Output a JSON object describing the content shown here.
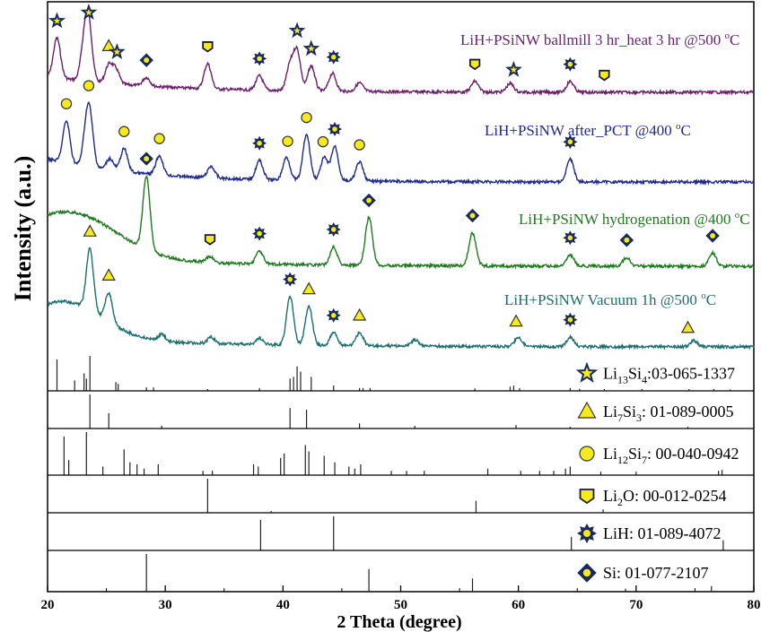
{
  "chart_data": {
    "type": "line",
    "xlabel": "2 Theta (degree)",
    "ylabel": "Intensity (a.u.)",
    "xlim": [
      20,
      80
    ],
    "xticks": [
      "20",
      "30",
      "40",
      "50",
      "60",
      "70",
      "80"
    ],
    "series": [
      {
        "name": "LiH+PSiNW ballmill 3 hr_heat 3 hr @500 oC",
        "label_main": "LiH+PSiNW ballmill 3 hr_heat 3 hr @500 ",
        "label_sup": "o",
        "label_tail": "C",
        "color": "#6b1f6b",
        "baseline": 1.0,
        "peaks": [
          [
            20.8,
            0.55
          ],
          [
            23.1,
            0.45
          ],
          [
            23.5,
            0.75
          ],
          [
            25.2,
            0.25
          ],
          [
            25.8,
            0.2
          ],
          [
            28.4,
            0.12
          ],
          [
            33.6,
            0.35
          ],
          [
            38.0,
            0.2
          ],
          [
            40.6,
            0.35
          ],
          [
            41.2,
            0.55
          ],
          [
            42.4,
            0.35
          ],
          [
            44.2,
            0.25
          ],
          [
            46.5,
            0.12
          ],
          [
            56.3,
            0.15
          ],
          [
            59.3,
            0.12
          ],
          [
            64.4,
            0.15
          ]
        ],
        "markers": [
          [
            20.8,
            "Li13Si4"
          ],
          [
            23.5,
            "Li13Si4"
          ],
          [
            25.2,
            "Li7Si3"
          ],
          [
            25.9,
            "Li13Si4"
          ],
          [
            28.4,
            "Si"
          ],
          [
            33.6,
            "Li2O"
          ],
          [
            38.0,
            "LiH"
          ],
          [
            41.2,
            "Li13Si4"
          ],
          [
            42.4,
            "Li13Si4"
          ],
          [
            44.3,
            "LiH"
          ],
          [
            56.3,
            "Li2O"
          ],
          [
            59.6,
            "Li13Si4"
          ],
          [
            64.4,
            "LiH"
          ],
          [
            67.3,
            "Li2O"
          ]
        ]
      },
      {
        "name": "LiH+PSiNW after_PCT @400 oC",
        "label_main": "LiH+PSiNW after_PCT @400 ",
        "label_sup": "o",
        "label_tail": "C",
        "color": "#1f2a8a",
        "baseline": 1.0,
        "peaks": [
          [
            21.6,
            0.55
          ],
          [
            23.3,
            0.4
          ],
          [
            23.6,
            0.55
          ],
          [
            25.3,
            0.15
          ],
          [
            26.5,
            0.3
          ],
          [
            29.5,
            0.25
          ],
          [
            33.9,
            0.15
          ],
          [
            38.0,
            0.25
          ],
          [
            40.3,
            0.3
          ],
          [
            42.0,
            0.6
          ],
          [
            43.5,
            0.3
          ],
          [
            44.4,
            0.45
          ],
          [
            46.5,
            0.25
          ],
          [
            64.4,
            0.3
          ]
        ],
        "markers": [
          [
            21.6,
            "Li12Si7"
          ],
          [
            23.5,
            "Li12Si7"
          ],
          [
            26.5,
            "Li12Si7"
          ],
          [
            29.5,
            "Li12Si7"
          ],
          [
            38.0,
            "LiH"
          ],
          [
            40.4,
            "Li12Si7"
          ],
          [
            42.0,
            "Li12Si7"
          ],
          [
            43.4,
            "Li12Si7"
          ],
          [
            44.4,
            "LiH"
          ],
          [
            46.5,
            "Li12Si7"
          ],
          [
            64.4,
            "LiH"
          ]
        ]
      },
      {
        "name": "LiH+PSiNW hydrogenation @400 oC",
        "label_main": "LiH+PSiNW hydrogenation @400 ",
        "label_sup": "o",
        "label_tail": "C",
        "color": "#1e7a1e",
        "baseline": 1.0,
        "peaks": [
          [
            28.4,
            1.0
          ],
          [
            33.8,
            0.08
          ],
          [
            38.0,
            0.18
          ],
          [
            44.3,
            0.25
          ],
          [
            47.3,
            0.65
          ],
          [
            56.1,
            0.45
          ],
          [
            64.4,
            0.15
          ],
          [
            69.2,
            0.12
          ],
          [
            76.5,
            0.18
          ]
        ],
        "markers": [
          [
            28.4,
            "Si"
          ],
          [
            33.8,
            "Li2O"
          ],
          [
            38.0,
            "LiH"
          ],
          [
            44.3,
            "LiH"
          ],
          [
            47.3,
            "Si"
          ],
          [
            56.1,
            "Si"
          ],
          [
            64.4,
            "LiH"
          ],
          [
            69.2,
            "Si"
          ],
          [
            76.5,
            "Si"
          ]
        ]
      },
      {
        "name": "LiH+PSiNW Vacuum 1h @500 oC",
        "label_main": "LiH+PSiNW Vacuum 1h @500 ",
        "label_sup": "o",
        "label_tail": "C",
        "color": "#1d6e6e",
        "baseline": 1.0,
        "peaks": [
          [
            23.6,
            0.95
          ],
          [
            25.2,
            0.45
          ],
          [
            29.7,
            0.1
          ],
          [
            33.9,
            0.1
          ],
          [
            38.0,
            0.1
          ],
          [
            40.6,
            0.75
          ],
          [
            42.2,
            0.6
          ],
          [
            44.3,
            0.2
          ],
          [
            46.5,
            0.2
          ],
          [
            51.2,
            0.1
          ],
          [
            60.0,
            0.15
          ],
          [
            64.4,
            0.15
          ],
          [
            74.9,
            0.1
          ]
        ],
        "markers": [
          [
            23.6,
            "Li7Si3"
          ],
          [
            25.2,
            "Li7Si3"
          ],
          [
            40.6,
            "LiH"
          ],
          [
            42.2,
            "Li7Si3"
          ],
          [
            44.3,
            "LiH"
          ],
          [
            46.5,
            "Li7Si3"
          ],
          [
            59.8,
            "Li7Si3"
          ],
          [
            64.4,
            "LiH"
          ],
          [
            74.4,
            "Li7Si3"
          ]
        ]
      }
    ],
    "reference_panels": [
      {
        "phase": "Li13Si4",
        "label_parts": [
          [
            "Li",
            ""
          ],
          [
            "13",
            "sub"
          ],
          [
            "Si",
            ""
          ],
          [
            "4",
            "sub"
          ],
          [
            ":03-065-1337",
            ""
          ]
        ],
        "marker": "star",
        "lines": [
          [
            20.8,
            0.9
          ],
          [
            22.3,
            0.3
          ],
          [
            23.1,
            0.5
          ],
          [
            23.3,
            0.35
          ],
          [
            23.6,
            1.0
          ],
          [
            25.8,
            0.25
          ],
          [
            26.0,
            0.2
          ],
          [
            28.4,
            0.1
          ],
          [
            29.0,
            0.1
          ],
          [
            33.6,
            0.05
          ],
          [
            38.0,
            0.08
          ],
          [
            40.6,
            0.35
          ],
          [
            40.9,
            0.4
          ],
          [
            41.2,
            0.7
          ],
          [
            41.5,
            0.55
          ],
          [
            42.4,
            0.4
          ],
          [
            44.3,
            0.15
          ],
          [
            46.5,
            0.08
          ],
          [
            46.8,
            0.08
          ],
          [
            47.4,
            0.08
          ],
          [
            56.3,
            0.07
          ],
          [
            59.3,
            0.12
          ],
          [
            59.6,
            0.15
          ],
          [
            60.1,
            0.08
          ],
          [
            64.4,
            0.08
          ],
          [
            65.2,
            0.06
          ],
          [
            67.3,
            0.05
          ],
          [
            70.5,
            0.05
          ],
          [
            74.5,
            0.05
          ],
          [
            76.6,
            0.05
          ],
          [
            78.0,
            0.04
          ]
        ]
      },
      {
        "phase": "Li7Si3",
        "label_parts": [
          [
            "Li",
            ""
          ],
          [
            "7",
            "sub"
          ],
          [
            "Si",
            ""
          ],
          [
            "3",
            "sub"
          ],
          [
            ": 01-089-0005",
            ""
          ]
        ],
        "marker": "triangle",
        "lines": [
          [
            23.6,
            1.0
          ],
          [
            25.2,
            0.45
          ],
          [
            29.7,
            0.08
          ],
          [
            40.6,
            0.6
          ],
          [
            42.0,
            0.55
          ],
          [
            46.5,
            0.15
          ],
          [
            51.2,
            0.08
          ],
          [
            59.8,
            0.1
          ],
          [
            64.4,
            0.05
          ],
          [
            74.4,
            0.05
          ]
        ]
      },
      {
        "phase": "Li12Si7",
        "label_parts": [
          [
            "Li",
            ""
          ],
          [
            "12",
            "sub"
          ],
          [
            "Si",
            ""
          ],
          [
            "7",
            "sub"
          ],
          [
            ": 00-040-0942",
            ""
          ]
        ],
        "marker": "circle",
        "lines": [
          [
            21.4,
            0.9
          ],
          [
            21.8,
            0.35
          ],
          [
            23.3,
            1.0
          ],
          [
            24.7,
            0.2
          ],
          [
            26.5,
            0.6
          ],
          [
            27.0,
            0.3
          ],
          [
            27.6,
            0.25
          ],
          [
            28.2,
            0.15
          ],
          [
            29.4,
            0.25
          ],
          [
            33.2,
            0.1
          ],
          [
            34.0,
            0.1
          ],
          [
            37.5,
            0.25
          ],
          [
            37.9,
            0.2
          ],
          [
            39.8,
            0.4
          ],
          [
            40.1,
            0.5
          ],
          [
            41.9,
            0.7
          ],
          [
            42.2,
            0.55
          ],
          [
            43.5,
            0.45
          ],
          [
            44.4,
            0.3
          ],
          [
            45.6,
            0.2
          ],
          [
            46.1,
            0.15
          ],
          [
            46.6,
            0.25
          ],
          [
            49.2,
            0.1
          ],
          [
            50.5,
            0.1
          ],
          [
            52.0,
            0.1
          ],
          [
            57.4,
            0.15
          ],
          [
            60.2,
            0.1
          ],
          [
            61.8,
            0.1
          ],
          [
            63.0,
            0.1
          ],
          [
            64.0,
            0.15
          ],
          [
            64.4,
            0.2
          ],
          [
            67.0,
            0.08
          ],
          [
            70.0,
            0.08
          ],
          [
            77.0,
            0.1
          ],
          [
            77.3,
            0.12
          ]
        ]
      },
      {
        "phase": "Li2O",
        "label_parts": [
          [
            "Li",
            ""
          ],
          [
            "2",
            "sub"
          ],
          [
            "O: 00-012-0254",
            ""
          ]
        ],
        "marker": "shield",
        "lines": [
          [
            33.6,
            1.0
          ],
          [
            39.0,
            0.05
          ],
          [
            56.4,
            0.35
          ],
          [
            67.2,
            0.1
          ]
        ]
      },
      {
        "phase": "LiH",
        "label_parts": [
          [
            "LiH: 01-089-4072",
            ""
          ]
        ],
        "marker": "sunburst",
        "lines": [
          [
            38.1,
            0.9
          ],
          [
            44.3,
            1.0
          ],
          [
            64.5,
            0.4
          ],
          [
            77.4,
            0.3
          ]
        ]
      },
      {
        "phase": "Si",
        "label_parts": [
          [
            "Si: 01-077-2107",
            ""
          ]
        ],
        "marker": "diamond",
        "lines": [
          [
            28.4,
            1.0
          ],
          [
            47.3,
            0.6
          ],
          [
            56.1,
            0.35
          ],
          [
            69.1,
            0.08
          ],
          [
            76.4,
            0.15
          ]
        ]
      }
    ],
    "marker_colors": {
      "fill": "#f4ea1d",
      "stroke": "#1a2a5a"
    },
    "grid": false,
    "legend_placement": "right, inside reference panels"
  }
}
